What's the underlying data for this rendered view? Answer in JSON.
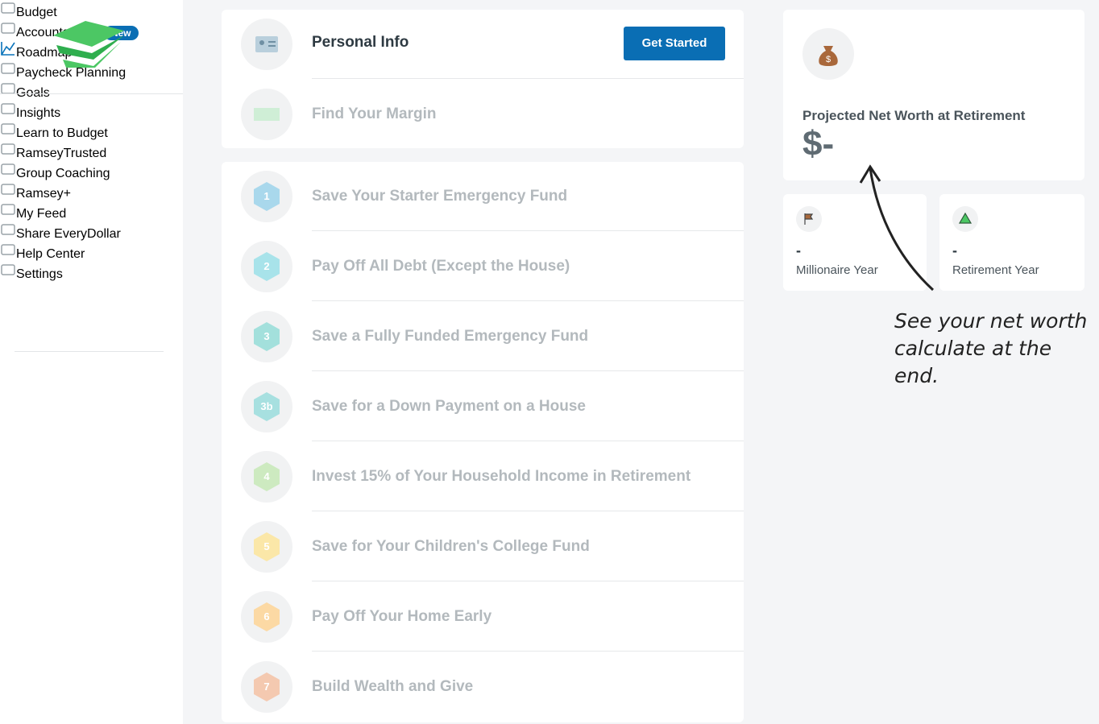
{
  "sidebar": {
    "nav": [
      {
        "label": "Budget"
      },
      {
        "label": "Accounts",
        "badge": "New"
      },
      {
        "label": "Roadmap"
      },
      {
        "label": "Paycheck Planning"
      },
      {
        "label": "Goals"
      },
      {
        "label": "Insights"
      },
      {
        "label": "Learn to Budget"
      },
      {
        "label": "RamseyTrusted"
      },
      {
        "label": "Group Coaching"
      },
      {
        "label": "Ramsey+"
      }
    ],
    "footer_nav": [
      {
        "label": "My Feed"
      },
      {
        "label": "Share EveryDollar"
      },
      {
        "label": "Help Center"
      },
      {
        "label": "Settings"
      }
    ]
  },
  "intro": {
    "title": "Personal Info",
    "button": "Get Started",
    "next": "Find Your Margin"
  },
  "steps": [
    {
      "number": "1",
      "label": "Save Your Starter Emergency Fund"
    },
    {
      "number": "2",
      "label": "Pay Off All Debt (Except the House)"
    },
    {
      "number": "3",
      "label": "Save a Fully Funded Emergency Fund"
    },
    {
      "number": "3b",
      "label": "Save for a Down Payment on a House"
    },
    {
      "number": "4",
      "label": "Invest 15% of Your Household Income in Retirement"
    },
    {
      "number": "5",
      "label": "Save for Your Children's College Fund"
    },
    {
      "number": "6",
      "label": "Pay Off Your Home Early"
    },
    {
      "number": "7",
      "label": "Build Wealth and Give"
    }
  ],
  "net_worth": {
    "label": "Projected Net Worth at Retirement",
    "value": "$-"
  },
  "stats": [
    {
      "value": "-",
      "label": "Millionaire Year"
    },
    {
      "value": "-",
      "label": "Retirement Year"
    }
  ],
  "annotation": [
    "See your net worth",
    "calculate at the end."
  ]
}
